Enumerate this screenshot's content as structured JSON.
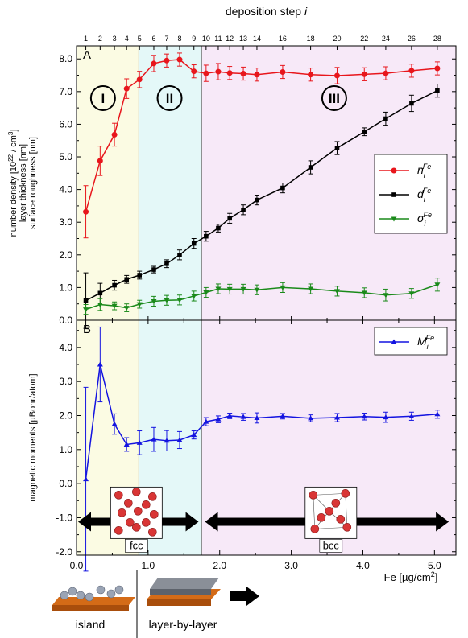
{
  "top_axis": {
    "label_prefix": "deposition step ",
    "label_var": "i",
    "ticks": [
      {
        "label": "1",
        "x": 0.13
      },
      {
        "label": "2",
        "x": 0.33
      },
      {
        "label": "3",
        "x": 0.53
      },
      {
        "label": "4",
        "x": 0.7
      },
      {
        "label": "5",
        "x": 0.88
      },
      {
        "label": "6",
        "x": 1.08
      },
      {
        "label": "7",
        "x": 1.26
      },
      {
        "label": "8",
        "x": 1.44
      },
      {
        "label": "9",
        "x": 1.64
      },
      {
        "label": "10",
        "x": 1.81
      },
      {
        "label": "11",
        "x": 1.98
      },
      {
        "label": "12",
        "x": 2.14
      },
      {
        "label": "13",
        "x": 2.33
      },
      {
        "label": "14",
        "x": 2.52
      },
      {
        "label": "16",
        "x": 2.88
      },
      {
        "label": "18",
        "x": 3.27
      },
      {
        "label": "20",
        "x": 3.64
      },
      {
        "label": "22",
        "x": 4.02
      },
      {
        "label": "24",
        "x": 4.32
      },
      {
        "label": "26",
        "x": 4.68
      },
      {
        "label": "28",
        "x": 5.04
      }
    ]
  },
  "bottom_axis": {
    "label": "Fe [µg/cm",
    "label_sup": "2",
    "label_end": "]",
    "ticks": [
      "0.0",
      "1.0",
      "2.0",
      "3.0",
      "4.0",
      "5.0"
    ],
    "xlim": [
      0,
      5.3
    ]
  },
  "panel_a": {
    "letter": "A",
    "ylabel_lines": [
      "number density [10",
      "layer thickness [nm]",
      "surface roughness [nm]"
    ],
    "ylabel_line1_sup": "22",
    "ylabel_line1_end": " / cm",
    "ylabel_line1_sup2": "3",
    "ylabel_line1_close": "]",
    "yticks": [
      "0.0",
      "1.0",
      "2.0",
      "3.0",
      "4.0",
      "5.0",
      "6.0",
      "7.0",
      "8.0"
    ],
    "ylim": [
      0,
      8.4
    ],
    "regions": [
      {
        "label": "I",
        "x": 0.37,
        "y": 6.8
      },
      {
        "label": "II",
        "x": 1.3,
        "y": 6.8
      },
      {
        "label": "III",
        "x": 3.6,
        "y": 6.8
      }
    ],
    "legend": [
      {
        "sym": "n",
        "sub": "i",
        "sup": "Fe",
        "color": "#e8161c",
        "marker": "circle"
      },
      {
        "sym": "d",
        "sub": "i",
        "sup": "Fe",
        "color": "#000000",
        "marker": "square"
      },
      {
        "sym": "σ",
        "sub": "i",
        "sup": "Fe",
        "color": "#1a8a1a",
        "marker": "tri-down"
      }
    ]
  },
  "panel_b": {
    "letter": "B",
    "ylabel": "magnetic moments [µBohr/atom]",
    "yticks": [
      "-2.0",
      "-1.0",
      "0.0",
      "1.0",
      "2.0",
      "3.0",
      "4.0"
    ],
    "ylim": [
      -2.1,
      4.8
    ],
    "legend": [
      {
        "sym": "M",
        "sub": "i",
        "sup": "Fe",
        "color": "#1414e0",
        "marker": "tri-up"
      }
    ],
    "arrows": [
      {
        "label": "fcc",
        "from": 0.0,
        "to": 1.75,
        "center": 0.87
      },
      {
        "label": "bcc",
        "from": 1.75,
        "to": 5.2,
        "center": 3.52
      }
    ]
  },
  "bottom_labels": {
    "island": "island",
    "layer": "layer-by-layer"
  },
  "shading": [
    {
      "from": 0.0,
      "to": 0.87,
      "color": "#fbfbe3"
    },
    {
      "from": 0.87,
      "to": 1.75,
      "color": "#e4f8f8"
    },
    {
      "from": 1.75,
      "to": 5.3,
      "color": "#f7e9f8"
    }
  ],
  "chart_data": {
    "type": "line",
    "x_unit": "Fe [µg/cm2]",
    "panels": [
      {
        "panel": "A",
        "series": [
          {
            "name": "n_i^Fe",
            "color": "#e8161c",
            "x": [
              0.13,
              0.33,
              0.53,
              0.7,
              0.88,
              1.08,
              1.26,
              1.44,
              1.64,
              1.81,
              1.98,
              2.14,
              2.33,
              2.52,
              2.88,
              3.27,
              3.64,
              4.02,
              4.32,
              4.68,
              5.04
            ],
            "y": [
              3.32,
              4.88,
              5.68,
              7.09,
              7.37,
              7.86,
              7.95,
              7.98,
              7.62,
              7.56,
              7.61,
              7.57,
              7.55,
              7.52,
              7.6,
              7.52,
              7.49,
              7.53,
              7.56,
              7.64,
              7.71
            ],
            "err": [
              0.8,
              0.45,
              0.35,
              0.3,
              0.25,
              0.25,
              0.2,
              0.2,
              0.2,
              0.25,
              0.25,
              0.2,
              0.2,
              0.2,
              0.2,
              0.2,
              0.25,
              0.2,
              0.2,
              0.2,
              0.2
            ]
          },
          {
            "name": "d_i^Fe",
            "color": "#000000",
            "x": [
              0.13,
              0.33,
              0.53,
              0.7,
              0.88,
              1.08,
              1.26,
              1.44,
              1.64,
              1.81,
              1.98,
              2.14,
              2.33,
              2.52,
              2.88,
              3.27,
              3.64,
              4.02,
              4.32,
              4.68,
              5.04
            ],
            "y": [
              0.6,
              0.83,
              1.07,
              1.25,
              1.38,
              1.55,
              1.73,
              2.0,
              2.35,
              2.57,
              2.82,
              3.12,
              3.38,
              3.68,
              4.05,
              4.68,
              5.27,
              5.77,
              6.17,
              6.64,
              7.03
            ],
            "err": [
              0.85,
              0.3,
              0.15,
              0.12,
              0.12,
              0.1,
              0.12,
              0.15,
              0.15,
              0.15,
              0.12,
              0.15,
              0.15,
              0.15,
              0.15,
              0.2,
              0.2,
              0.12,
              0.2,
              0.25,
              0.2
            ]
          },
          {
            "name": "σ_i^Fe",
            "color": "#1a8a1a",
            "x": [
              0.13,
              0.33,
              0.53,
              0.7,
              0.88,
              1.08,
              1.26,
              1.44,
              1.64,
              1.81,
              1.98,
              2.14,
              2.33,
              2.52,
              2.88,
              3.27,
              3.64,
              4.02,
              4.32,
              4.68,
              5.04
            ],
            "y": [
              0.33,
              0.48,
              0.44,
              0.38,
              0.49,
              0.58,
              0.61,
              0.62,
              0.74,
              0.85,
              0.96,
              0.95,
              0.95,
              0.93,
              1.0,
              0.96,
              0.89,
              0.84,
              0.77,
              0.82,
              1.09
            ],
            "err": [
              0.15,
              0.18,
              0.12,
              0.12,
              0.12,
              0.15,
              0.15,
              0.15,
              0.15,
              0.15,
              0.15,
              0.15,
              0.15,
              0.15,
              0.15,
              0.15,
              0.15,
              0.15,
              0.18,
              0.15,
              0.2
            ]
          }
        ]
      },
      {
        "panel": "B",
        "series": [
          {
            "name": "M_i^Fe",
            "color": "#1414e0",
            "x": [
              0.13,
              0.33,
              0.53,
              0.7,
              0.88,
              1.08,
              1.26,
              1.44,
              1.64,
              1.81,
              1.98,
              2.14,
              2.33,
              2.52,
              2.88,
              3.27,
              3.64,
              4.02,
              4.32,
              4.68,
              5.04
            ],
            "y": [
              0.13,
              3.5,
              1.75,
              1.15,
              1.2,
              1.3,
              1.26,
              1.28,
              1.43,
              1.82,
              1.89,
              1.99,
              1.96,
              1.93,
              1.98,
              1.92,
              1.94,
              1.97,
              1.95,
              1.98,
              2.04
            ],
            "err": [
              2.7,
              1.1,
              0.3,
              0.2,
              0.35,
              0.35,
              0.3,
              0.25,
              0.12,
              0.12,
              0.1,
              0.08,
              0.1,
              0.15,
              0.08,
              0.1,
              0.12,
              0.1,
              0.15,
              0.12,
              0.12
            ]
          }
        ]
      }
    ]
  }
}
